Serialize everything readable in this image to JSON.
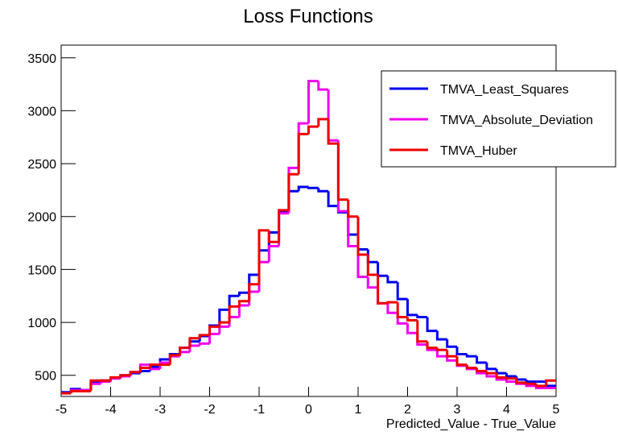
{
  "chart_data": {
    "type": "histogram",
    "title": "Loss Functions",
    "x_label": "Predicted_Value - True_Value",
    "bins": [
      -5,
      -4.8,
      -4.6,
      -4.4,
      -4.2,
      -4,
      -3.8,
      -3.6,
      -3.4,
      -3.2,
      -3,
      -2.8,
      -2.6,
      -2.4,
      -2.2,
      -2,
      -1.8,
      -1.6,
      -1.4,
      -1.2,
      -1,
      -0.8,
      -0.6,
      -0.4,
      -0.2,
      0,
      0.2,
      0.4,
      0.6,
      0.8,
      1,
      1.2,
      1.4,
      1.6,
      1.8,
      2,
      2.2,
      2.4,
      2.6,
      2.8,
      3,
      3.2,
      3.4,
      3.6,
      3.8,
      4,
      4.2,
      4.4,
      4.6,
      4.8,
      5
    ],
    "series": [
      {
        "name": "TMVA_Least_Squares",
        "color": "#0000ee",
        "values": [
          340,
          370,
          360,
          430,
          450,
          470,
          500,
          520,
          540,
          580,
          650,
          700,
          760,
          820,
          870,
          970,
          1120,
          1250,
          1280,
          1450,
          1680,
          1850,
          2040,
          2240,
          2280,
          2270,
          2240,
          2100,
          2040,
          1830,
          1690,
          1570,
          1440,
          1380,
          1220,
          1070,
          1050,
          920,
          840,
          770,
          700,
          680,
          620,
          560,
          520,
          490,
          460,
          440,
          440,
          400
        ]
      },
      {
        "name": "TMVA_Absolute_Deviation",
        "color": "#ee00ee",
        "values": [
          330,
          360,
          360,
          420,
          440,
          470,
          490,
          530,
          600,
          560,
          620,
          680,
          720,
          780,
          800,
          890,
          960,
          1050,
          1160,
          1290,
          1570,
          1720,
          2030,
          2460,
          2880,
          3280,
          3200,
          2720,
          2050,
          1720,
          1430,
          1330,
          1180,
          1090,
          990,
          900,
          790,
          740,
          680,
          640,
          590,
          560,
          520,
          490,
          460,
          440,
          420,
          400,
          380,
          380
        ]
      },
      {
        "name": "TMVA_Huber",
        "color": "#ee0000",
        "values": [
          330,
          350,
          350,
          450,
          450,
          480,
          500,
          530,
          570,
          600,
          600,
          690,
          760,
          850,
          880,
          960,
          1000,
          1150,
          1200,
          1360,
          1870,
          1760,
          2060,
          2400,
          2780,
          2850,
          2920,
          2690,
          2160,
          2000,
          1640,
          1450,
          1180,
          1190,
          1050,
          1020,
          820,
          760,
          740,
          680,
          600,
          570,
          540,
          520,
          480,
          470,
          430,
          420,
          400,
          450
        ]
      }
    ],
    "xlim": [
      -5,
      5
    ],
    "xticks": [
      -5,
      -4,
      -3,
      -2,
      -1,
      0,
      1,
      2,
      3,
      4,
      5
    ],
    "ylim": [
      300,
      3620
    ],
    "yticks": [
      500,
      1000,
      1500,
      2000,
      2500,
      3000,
      3500
    ],
    "grid": false,
    "legend": "top-right"
  }
}
